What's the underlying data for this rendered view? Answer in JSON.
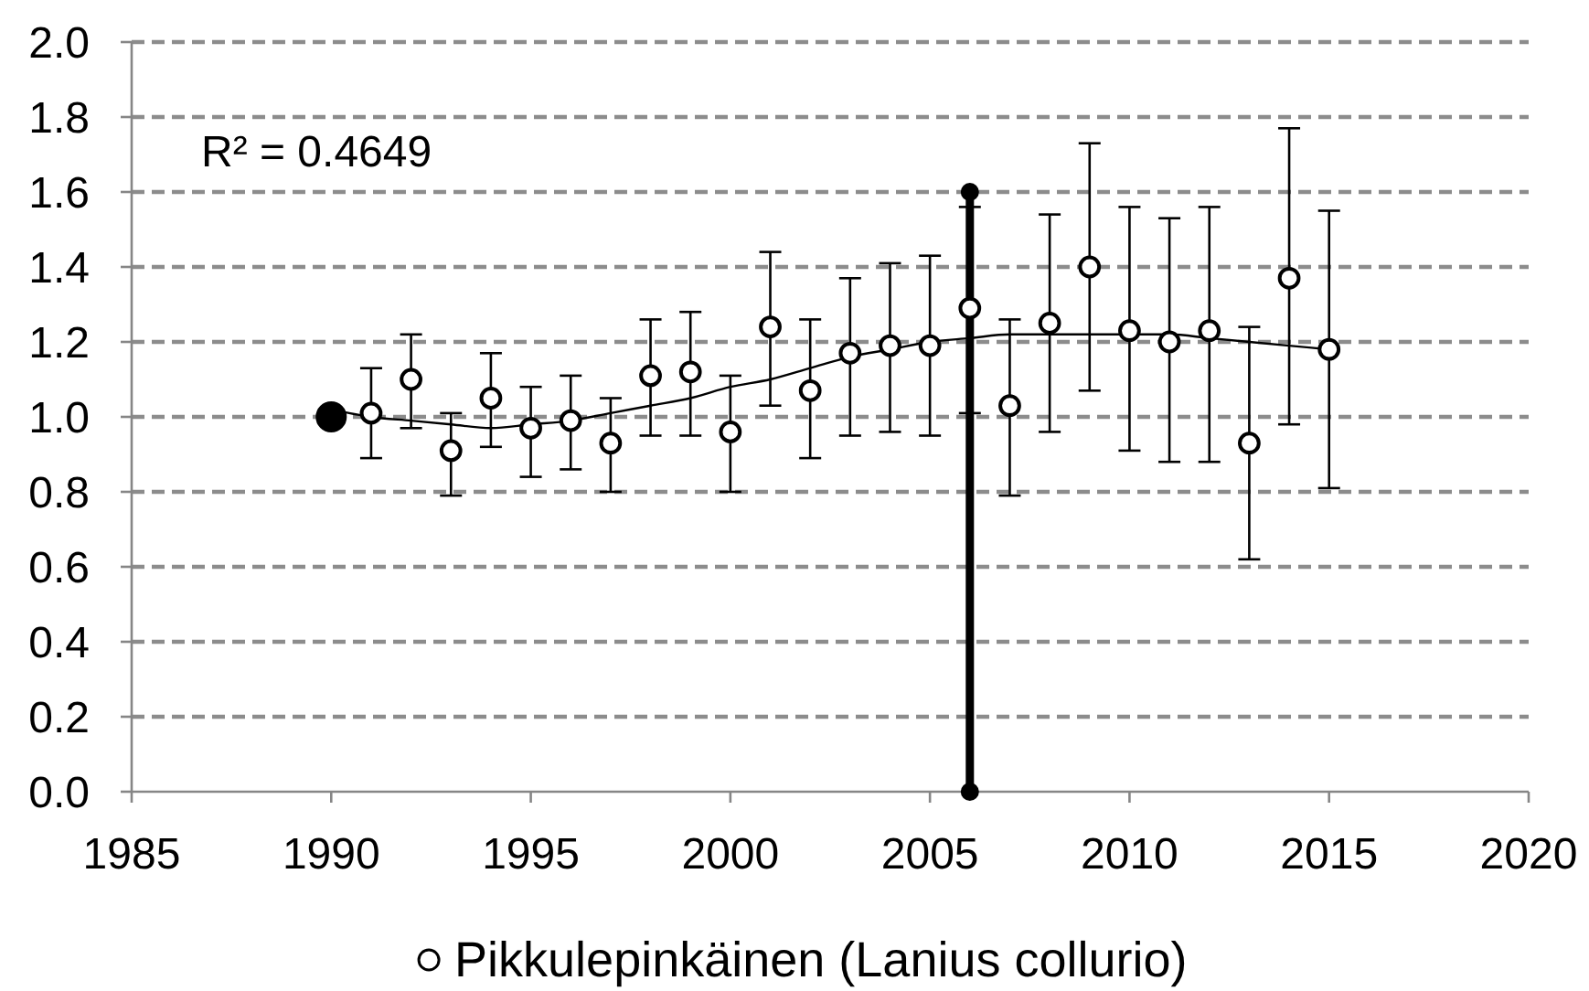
{
  "chart_data": {
    "type": "scatter",
    "annotations": [
      "R² = 0.4649"
    ],
    "x": [
      1990,
      1991,
      1992,
      1993,
      1994,
      1995,
      1996,
      1997,
      1998,
      1999,
      2000,
      2001,
      2002,
      2003,
      2004,
      2005,
      2006,
      2007,
      2008,
      2009,
      2010,
      2011,
      2012,
      2013,
      2014,
      2015
    ],
    "series": [
      {
        "name": "Pikkulepinkäinen (Lanius collurio)",
        "marker": "circle",
        "color": "#000000",
        "colors": [
          "#000000",
          "#ffffff",
          "#ffffff",
          "#ffffff",
          "#ffffff",
          "#ffffff",
          "#ffffff",
          "#ffffff",
          "#ffffff",
          "#ffffff",
          "#ffffff",
          "#ffffff",
          "#ffffff",
          "#ffffff",
          "#ffffff",
          "#ffffff",
          "#ffffff",
          "#ffffff",
          "#ffffff",
          "#ffffff",
          "#ffffff",
          "#ffffff",
          "#ffffff",
          "#ffffff",
          "#ffffff",
          "#ffffff"
        ],
        "sizes": [
          1,
          0.48,
          0.48,
          0.48,
          0.48,
          0.48,
          0.48,
          0.48,
          0.48,
          0.48,
          0.48,
          0.48,
          0.48,
          0.48,
          0.48,
          0.48,
          0.48,
          0.48,
          0.48,
          0.48,
          0.48,
          0.48,
          0.48,
          0.48,
          0.48,
          0.48
        ],
        "values": [
          1.0,
          1.01,
          1.1,
          0.91,
          1.05,
          0.97,
          0.99,
          0.93,
          1.11,
          1.12,
          0.96,
          1.24,
          1.07,
          1.17,
          1.19,
          1.19,
          1.29,
          1.03,
          1.25,
          1.4,
          1.23,
          1.2,
          1.23,
          0.93,
          1.37,
          1.18
        ],
        "errors": [
          null,
          [
            0.89,
            1.13
          ],
          [
            0.97,
            1.22
          ],
          [
            0.79,
            1.01
          ],
          [
            0.92,
            1.17
          ],
          [
            0.84,
            1.08
          ],
          [
            0.86,
            1.11
          ],
          [
            0.8,
            1.05
          ],
          [
            0.95,
            1.26
          ],
          [
            0.95,
            1.28
          ],
          [
            0.8,
            1.11
          ],
          [
            1.03,
            1.44
          ],
          [
            0.89,
            1.26
          ],
          [
            0.95,
            1.37
          ],
          [
            0.96,
            1.41
          ],
          [
            0.95,
            1.43
          ],
          [
            1.01,
            1.56
          ],
          [
            0.79,
            1.26
          ],
          [
            0.96,
            1.54
          ],
          [
            1.07,
            1.73
          ],
          [
            0.91,
            1.56
          ],
          [
            0.88,
            1.53
          ],
          [
            0.88,
            1.56
          ],
          [
            0.62,
            1.24
          ],
          [
            0.98,
            1.77
          ],
          [
            0.81,
            1.55
          ]
        ]
      },
      {
        "type": "line",
        "marker": "none",
        "color": "#000000",
        "values": [
          1.02,
          1.0,
          0.99,
          0.98,
          0.97,
          0.98,
          0.99,
          1.01,
          1.03,
          1.05,
          1.08,
          1.1,
          1.13,
          1.16,
          1.18,
          1.2,
          1.21,
          1.22,
          1.22,
          1.22,
          1.22,
          1.22,
          1.21,
          1.2,
          1.19,
          1.18
        ]
      },
      {
        "type": "line",
        "marker": "circle",
        "color": "#000000",
        "x": [
          2006,
          2006
        ],
        "values": [
          0,
          1.6
        ]
      }
    ],
    "xlim": [
      1985,
      2020
    ],
    "xticks": [
      1985,
      1990,
      1995,
      2000,
      2005,
      2010,
      2015,
      2020
    ],
    "ylim": [
      0,
      2
    ],
    "yticks": [
      {
        "value": 0,
        "label": "0.0"
      },
      {
        "value": 0.2,
        "label": "0.2"
      },
      {
        "value": 0.4,
        "label": "0.4"
      },
      {
        "value": 0.6,
        "label": "0.6"
      },
      {
        "value": 0.8,
        "label": "0.8"
      },
      {
        "value": 1,
        "label": "1.0"
      },
      {
        "value": 1.2,
        "label": "1.2"
      },
      {
        "value": 1.4,
        "label": "1.4"
      },
      {
        "value": 1.6,
        "label": "1.6"
      },
      {
        "value": 1.8,
        "label": "1.8"
      },
      {
        "value": 2,
        "label": "2.0"
      }
    ],
    "grid": "y",
    "legend": "bottom"
  }
}
